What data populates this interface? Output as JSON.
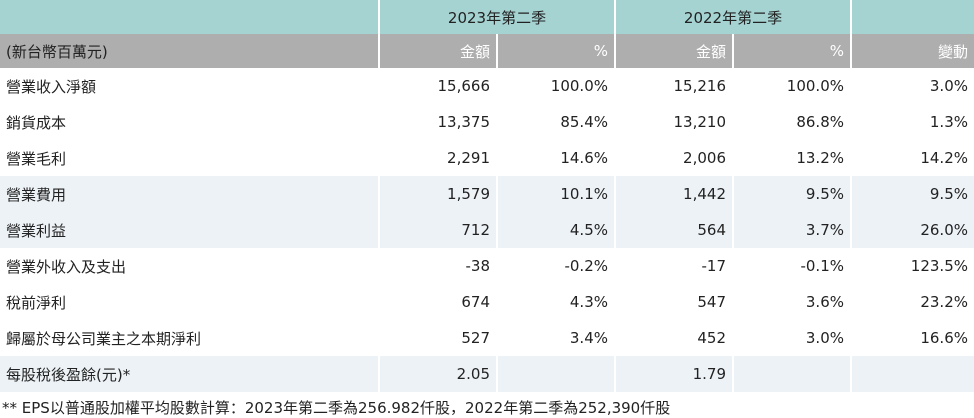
{
  "header": {
    "group_2023": "2023年第二季",
    "group_2022": "2022年第二季",
    "unit_label": "(新台幣百萬元)",
    "col_amount_2023": "金額",
    "col_pct_2023": "%",
    "col_amount_2022": "金額",
    "col_pct_2022": "%",
    "col_change": "變動"
  },
  "rows": [
    {
      "label": "營業收入淨額",
      "a23": "15,666",
      "p23": "100.0%",
      "a22": "15,216",
      "p22": "100.0%",
      "chg": "3.0%"
    },
    {
      "label": "銷貨成本",
      "a23": "13,375",
      "p23": "85.4%",
      "a22": "13,210",
      "p22": "86.8%",
      "chg": "1.3%"
    },
    {
      "label": "營業毛利",
      "a23": "2,291",
      "p23": "14.6%",
      "a22": "2,006",
      "p22": "13.2%",
      "chg": "14.2%"
    },
    {
      "label": "營業費用",
      "a23": "1,579",
      "p23": "10.1%",
      "a22": "1,442",
      "p22": "9.5%",
      "chg": "9.5%"
    },
    {
      "label": "營業利益",
      "a23": "712",
      "p23": "4.5%",
      "a22": "564",
      "p22": "3.7%",
      "chg": "26.0%"
    },
    {
      "label": "營業外收入及支出",
      "a23": "-38",
      "p23": "-0.2%",
      "a22": "-17",
      "p22": "-0.1%",
      "chg": "123.5%"
    },
    {
      "label": "稅前淨利",
      "a23": "674",
      "p23": "4.3%",
      "a22": "547",
      "p22": "3.6%",
      "chg": "23.2%"
    },
    {
      "label": "歸屬於母公司業主之本期淨利",
      "a23": "527",
      "p23": "3.4%",
      "a22": "452",
      "p22": "3.0%",
      "chg": "16.6%"
    },
    {
      "label": "每股稅後盈餘(元)*",
      "a23": "2.05",
      "p23": "",
      "a22": "1.79",
      "p22": "",
      "chg": ""
    }
  ],
  "footnote": "** EPS以普通股加權平均股數計算：2023年第二季為256.982仟股，2022年第二季為252,390仟股"
}
